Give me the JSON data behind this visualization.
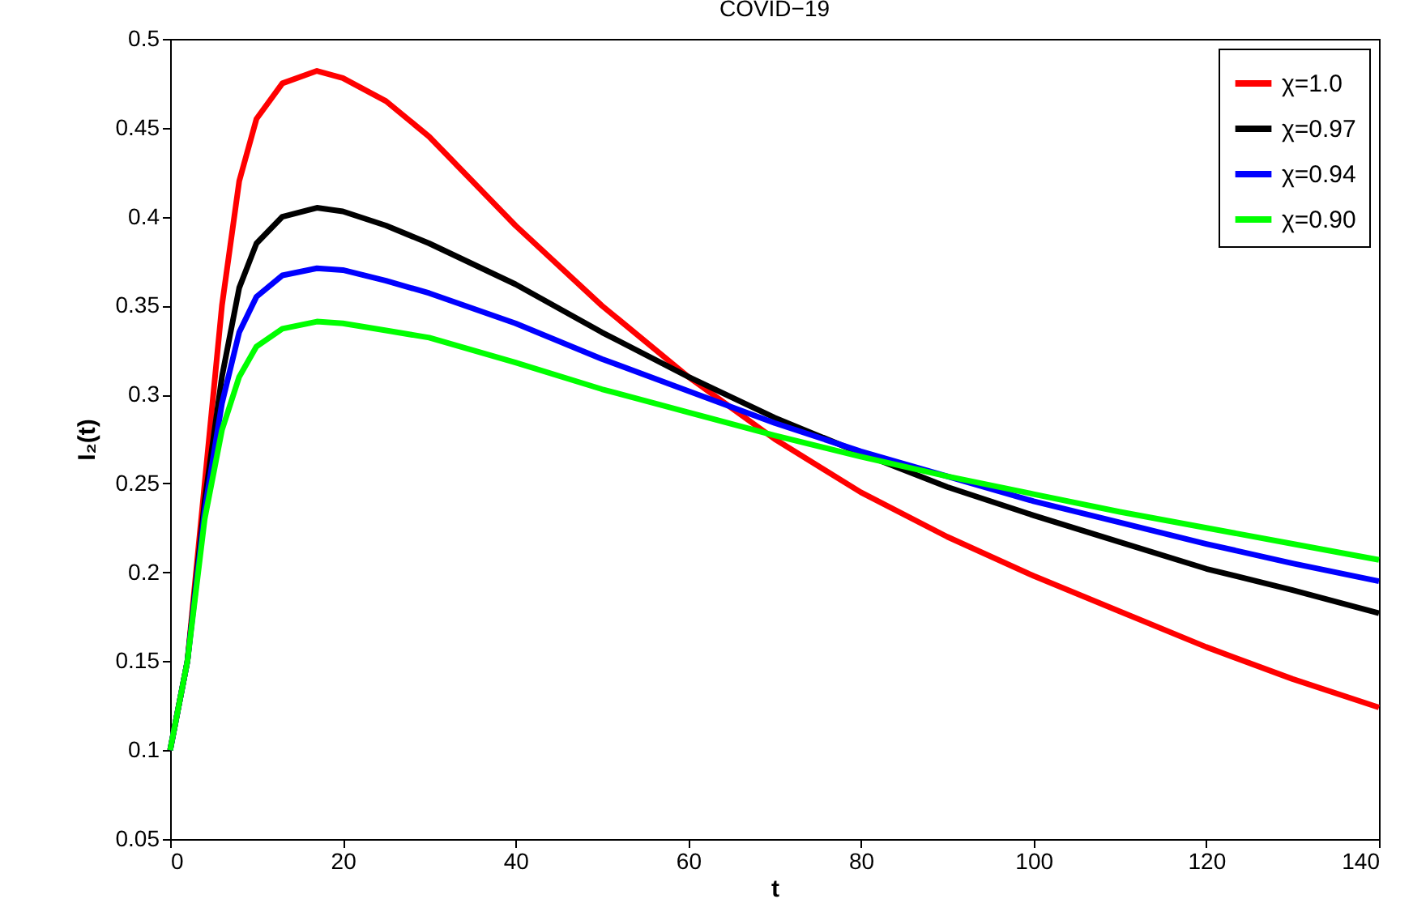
{
  "chart_data": {
    "type": "line",
    "title": "COVID−19",
    "xlabel": "t",
    "ylabel": "I₂(t)",
    "xlim": [
      0,
      140
    ],
    "ylim": [
      0.05,
      0.5
    ],
    "xticks": [
      0,
      20,
      40,
      60,
      80,
      100,
      120,
      140
    ],
    "yticks": [
      0.05,
      0.1,
      0.15,
      0.2,
      0.25,
      0.3,
      0.35,
      0.4,
      0.45,
      0.5
    ],
    "x": [
      0,
      2,
      4,
      6,
      8,
      10,
      13,
      17,
      20,
      25,
      30,
      40,
      50,
      60,
      70,
      80,
      90,
      100,
      110,
      120,
      130,
      140
    ],
    "series": [
      {
        "name": "χ=1.0",
        "color": "#ff0000",
        "values": [
          0.1,
          0.15,
          0.25,
          0.35,
          0.42,
          0.455,
          0.475,
          0.482,
          0.478,
          0.465,
          0.445,
          0.395,
          0.35,
          0.31,
          0.275,
          0.245,
          0.22,
          0.198,
          0.178,
          0.158,
          0.14,
          0.124
        ]
      },
      {
        "name": "χ=0.97",
        "color": "#000000",
        "values": [
          0.1,
          0.15,
          0.24,
          0.31,
          0.36,
          0.385,
          0.4,
          0.405,
          0.403,
          0.395,
          0.385,
          0.362,
          0.335,
          0.31,
          0.287,
          0.267,
          0.248,
          0.232,
          0.217,
          0.202,
          0.19,
          0.177
        ]
      },
      {
        "name": "χ=0.94",
        "color": "#0000ff",
        "values": [
          0.1,
          0.15,
          0.235,
          0.295,
          0.335,
          0.355,
          0.367,
          0.371,
          0.37,
          0.364,
          0.357,
          0.34,
          0.32,
          0.302,
          0.284,
          0.268,
          0.254,
          0.24,
          0.228,
          0.216,
          0.205,
          0.195
        ]
      },
      {
        "name": "χ=0.90",
        "color": "#00ff00",
        "values": [
          0.1,
          0.15,
          0.23,
          0.28,
          0.31,
          0.327,
          0.337,
          0.341,
          0.34,
          0.336,
          0.332,
          0.318,
          0.303,
          0.29,
          0.277,
          0.265,
          0.254,
          0.244,
          0.234,
          0.225,
          0.216,
          0.207
        ]
      }
    ],
    "legend": "top right",
    "grid": false,
    "line_style": "solid",
    "marker": "none"
  }
}
